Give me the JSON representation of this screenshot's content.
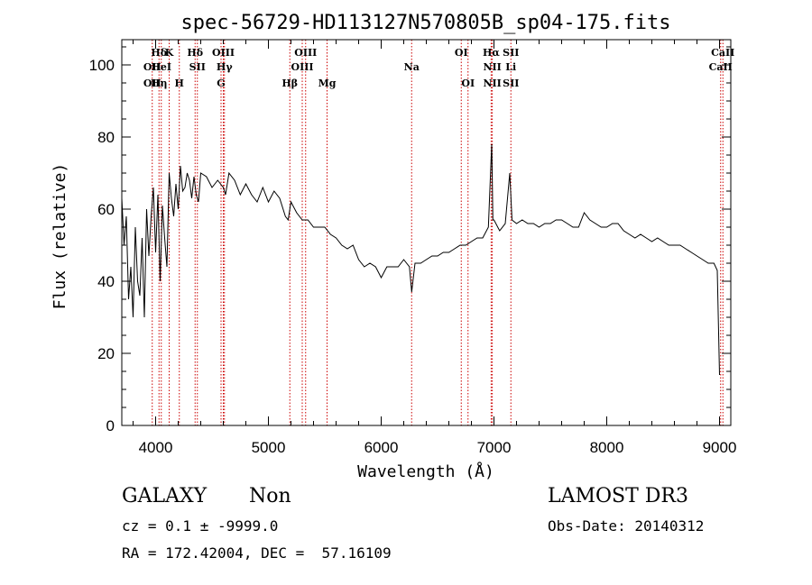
{
  "chart_data": {
    "type": "line",
    "title": "spec-56729-HD113127N570805B_sp04-175.fits",
    "xlabel": "Wavelength (Å)",
    "ylabel": "Flux (relative)",
    "xlim": [
      3700,
      9100
    ],
    "ylim": [
      0,
      107
    ],
    "xticks": [
      4000,
      5000,
      6000,
      7000,
      8000,
      9000
    ],
    "yticks": [
      0,
      20,
      40,
      60,
      80,
      100
    ],
    "grid": false,
    "line_color": "#000000",
    "marker_color": "#cc0000",
    "series": [
      {
        "x": [
          3700,
          3720,
          3740,
          3760,
          3780,
          3800,
          3820,
          3840,
          3860,
          3880,
          3900,
          3920,
          3940,
          3960,
          3980,
          4000,
          4020,
          4040,
          4060,
          4080,
          4100,
          4120,
          4140,
          4160,
          4180,
          4200,
          4220,
          4240,
          4260,
          4280,
          4300,
          4320,
          4340,
          4360,
          4380,
          4400,
          4450,
          4500,
          4550,
          4600,
          4620,
          4650,
          4700,
          4750,
          4800,
          4850,
          4900,
          4950,
          5000,
          5050,
          5100,
          5150,
          5175,
          5200,
          5250,
          5300,
          5350,
          5400,
          5450,
          5500,
          5550,
          5600,
          5650,
          5700,
          5750,
          5800,
          5850,
          5900,
          5950,
          6000,
          6050,
          6100,
          6150,
          6200,
          6250,
          6270,
          6300,
          6350,
          6400,
          6450,
          6500,
          6550,
          6600,
          6650,
          6700,
          6750,
          6800,
          6850,
          6900,
          6950,
          6980,
          6990,
          7000,
          7050,
          7100,
          7140,
          7160,
          7200,
          7250,
          7300,
          7350,
          7400,
          7450,
          7500,
          7550,
          7600,
          7650,
          7700,
          7750,
          7800,
          7850,
          7900,
          7950,
          8000,
          8050,
          8100,
          8150,
          8200,
          8250,
          8300,
          8350,
          8400,
          8450,
          8500,
          8550,
          8600,
          8650,
          8700,
          8750,
          8800,
          8850,
          8900,
          8950,
          8980,
          9000
        ],
        "y": [
          63,
          50,
          58,
          35,
          44,
          30,
          55,
          40,
          36,
          52,
          30,
          60,
          47,
          58,
          66,
          48,
          64,
          40,
          61,
          52,
          44,
          70,
          63,
          58,
          67,
          60,
          72,
          65,
          66,
          70,
          68,
          63,
          69,
          64,
          62,
          70,
          69,
          66,
          68,
          66,
          64,
          70,
          68,
          64,
          67,
          64,
          62,
          66,
          62,
          65,
          63,
          58,
          57,
          62,
          59,
          57,
          57,
          55,
          55,
          55,
          53,
          52,
          50,
          49,
          50,
          46,
          44,
          45,
          44,
          41,
          44,
          44,
          44,
          46,
          44,
          37,
          45,
          45,
          46,
          47,
          47,
          48,
          48,
          49,
          50,
          50,
          51,
          52,
          52,
          55,
          78,
          57,
          57,
          54,
          56,
          70,
          57,
          56,
          57,
          56,
          56,
          55,
          56,
          56,
          57,
          57,
          56,
          55,
          55,
          59,
          57,
          56,
          55,
          55,
          56,
          56,
          54,
          53,
          52,
          53,
          52,
          51,
          52,
          51,
          50,
          50,
          50,
          49,
          48,
          47,
          46,
          45,
          45,
          43,
          14
        ]
      }
    ],
    "lines": [
      {
        "wavelength": 3970,
        "label": "OII",
        "row": 1
      },
      {
        "wavelength": 3970,
        "label": "OII",
        "row": 2
      },
      {
        "wavelength": 4030,
        "label": "Hδ",
        "row": 0
      },
      {
        "wavelength": 4050,
        "label": "HeI",
        "row": 1
      },
      {
        "wavelength": 4030,
        "label": "Hη",
        "row": 2
      },
      {
        "wavelength": 4120,
        "label": "K",
        "row": 0
      },
      {
        "wavelength": 4210,
        "label": "H",
        "row": 2
      },
      {
        "wavelength": 4350,
        "label": "Hδ",
        "row": 0
      },
      {
        "wavelength": 4370,
        "label": "SII",
        "row": 1
      },
      {
        "wavelength": 4600,
        "label": "OIII",
        "row": 0
      },
      {
        "wavelength": 4610,
        "label": "Hγ",
        "row": 1
      },
      {
        "wavelength": 4580,
        "label": "G",
        "row": 2
      },
      {
        "wavelength": 5190,
        "label": "Hβ",
        "row": 2
      },
      {
        "wavelength": 5330,
        "label": "OIII",
        "row": 0
      },
      {
        "wavelength": 5300,
        "label": "OIII",
        "row": 1
      },
      {
        "wavelength": 5520,
        "label": "Mg",
        "row": 2
      },
      {
        "wavelength": 6270,
        "label": "Na",
        "row": 1
      },
      {
        "wavelength": 6710,
        "label": "OI",
        "row": 0
      },
      {
        "wavelength": 6770,
        "label": "OI",
        "row": 2
      },
      {
        "wavelength": 6975,
        "label": "Hα",
        "row": 0
      },
      {
        "wavelength": 6985,
        "label": "NII",
        "row": 1
      },
      {
        "wavelength": 6985,
        "label": "NII",
        "row": 2
      },
      {
        "wavelength": 7150,
        "label": "SII",
        "row": 0
      },
      {
        "wavelength": 7150,
        "label": "Li",
        "row": 1
      },
      {
        "wavelength": 7150,
        "label": "SII",
        "row": 2
      },
      {
        "wavelength": 9030,
        "label": "CaII",
        "row": 0
      },
      {
        "wavelength": 9010,
        "label": "CaII",
        "row": 1
      }
    ]
  },
  "info": {
    "object_class": "GALAXY",
    "subclass": "Non",
    "cz_line": "cz = 0.1 ± -9999.0",
    "coords_line": "RA = 172.42004, DEC =  57.16109",
    "survey": "LAMOST DR3",
    "obs_date_line": "Obs-Date: 20140312"
  }
}
